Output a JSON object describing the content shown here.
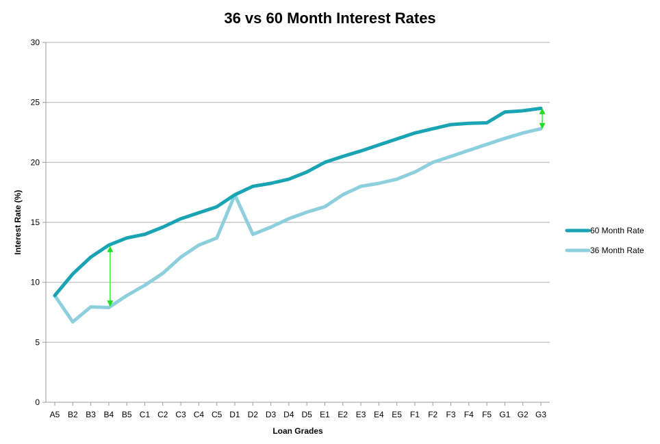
{
  "chart_data": {
    "type": "line",
    "title": "36 vs 60 Month Interest Rates",
    "xlabel": "Loan Grades",
    "ylabel": "Interest Rate (%)",
    "ylim": [
      0,
      30
    ],
    "yticks": [
      0,
      5,
      10,
      15,
      20,
      25,
      30
    ],
    "grid": true,
    "legend_position": "right",
    "categories": [
      "A5",
      "B2",
      "B3",
      "B4",
      "B5",
      "C1",
      "C2",
      "C3",
      "C4",
      "C5",
      "D1",
      "D2",
      "D3",
      "D4",
      "D5",
      "E1",
      "E2",
      "E3",
      "E4",
      "E5",
      "F1",
      "F2",
      "F3",
      "F4",
      "F5",
      "G1",
      "G2",
      "G3"
    ],
    "series": [
      {
        "name": "60 Month Rate",
        "color": "#1aa3b3",
        "values": [
          8.9,
          10.7,
          12.1,
          13.1,
          13.7,
          14.0,
          14.6,
          15.3,
          15.8,
          16.3,
          17.3,
          18.0,
          18.25,
          18.6,
          19.2,
          20.0,
          20.5,
          20.95,
          21.45,
          21.95,
          22.45,
          22.8,
          23.15,
          23.25,
          23.3,
          24.2,
          24.3,
          24.5
        ]
      },
      {
        "name": "36 Month Rate",
        "color": "#8ecfdd",
        "values": [
          8.9,
          6.7,
          7.95,
          7.9,
          8.9,
          9.75,
          10.75,
          12.1,
          13.1,
          13.7,
          17.3,
          14.0,
          14.6,
          15.3,
          15.85,
          16.3,
          17.3,
          18.0,
          18.25,
          18.6,
          19.2,
          20.0,
          20.5,
          21.0,
          21.5,
          22.0,
          22.45,
          22.8
        ]
      }
    ],
    "annotations": [
      {
        "type": "double-arrow",
        "category": "B4",
        "from": 13.0,
        "to": 8.0,
        "color": "#33ee33"
      },
      {
        "type": "double-arrow",
        "category": "G3",
        "from": 24.5,
        "to": 22.8,
        "color": "#33ee33"
      }
    ]
  }
}
